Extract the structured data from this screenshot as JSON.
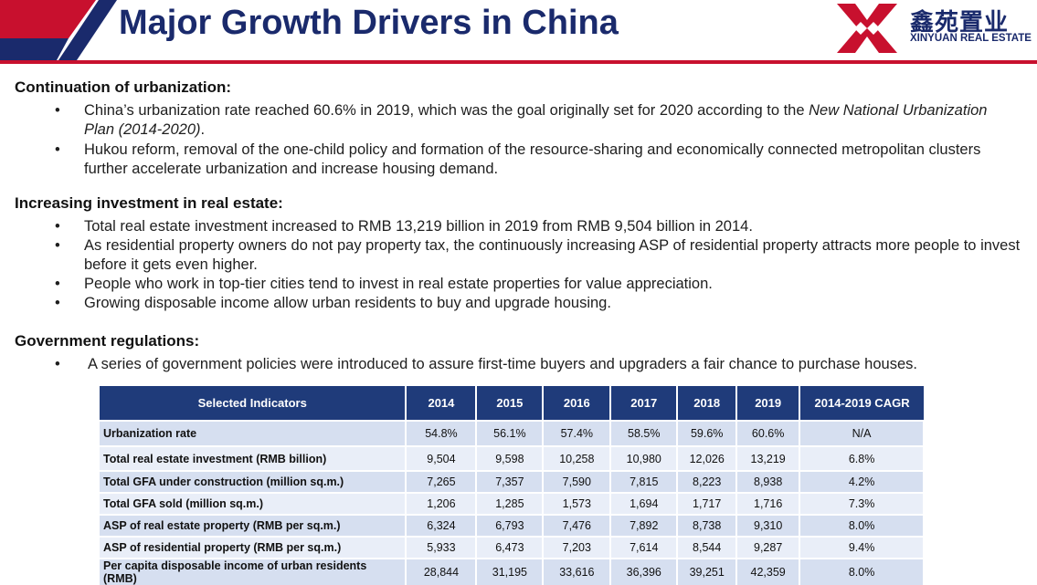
{
  "header": {
    "title": "Major Growth Drivers in China",
    "logo": {
      "chinese": "鑫苑置业",
      "english": "XINYUAN REAL ESTATE",
      "icon": "xinyuan-logo-mark"
    },
    "colors": {
      "navy": "#1a2a6c",
      "red": "#c8102e",
      "table_header": "#1f3b7a"
    }
  },
  "sections": [
    {
      "heading": "Continuation of urbanization:",
      "bullets": [
        {
          "text": "China’s urbanization rate reached 60.6% in 2019, which was the goal originally set for 2020 according to the ",
          "italic": "New National Urbanization Plan (2014-2020)",
          "tail": "."
        },
        {
          "text": "Hukou reform, removal of the one-child policy and formation of the resource-sharing and economically connected metropolitan clusters further accelerate urbanization and increase housing demand."
        }
      ]
    },
    {
      "heading": "Increasing investment in real estate:",
      "bullets": [
        {
          "text": "Total real estate investment increased to RMB 13,219 billion in 2019 from RMB 9,504 billion in 2014."
        },
        {
          "text": "As residential property owners do not pay property tax, the continuously increasing ASP of residential property attracts more people to invest before it gets even higher."
        },
        {
          "text": "People who work in top-tier cities tend to invest in real estate properties for value appreciation."
        },
        {
          "text": "Growing disposable income allow urban residents to buy and upgrade housing."
        }
      ]
    },
    {
      "heading": "Government regulations:",
      "bullets": [
        {
          "text": "A series of government policies were introduced to assure first-time buyers and upgraders a fair chance to purchase houses."
        }
      ]
    }
  ],
  "bullet_symbol": "•",
  "table": {
    "headers": [
      "Selected Indicators",
      "2014",
      "2015",
      "2016",
      "2017",
      "2018",
      "2019",
      "2014-2019 CAGR"
    ],
    "rows": [
      [
        "Urbanization rate",
        "54.8%",
        "56.1%",
        "57.4%",
        "58.5%",
        "59.6%",
        "60.6%",
        "N/A"
      ],
      [
        "Total real estate investment (RMB billion)",
        "9,504",
        "9,598",
        "10,258",
        "10,980",
        "12,026",
        "13,219",
        "6.8%"
      ],
      [
        "Total GFA under construction (million sq.m.)",
        "7,265",
        "7,357",
        "7,590",
        "7,815",
        "8,223",
        "8,938",
        "4.2%"
      ],
      [
        "Total GFA sold (million sq.m.)",
        "1,206",
        "1,285",
        "1,573",
        "1,694",
        "1,717",
        "1,716",
        "7.3%"
      ],
      [
        "ASP of real estate property (RMB per sq.m.)",
        "6,324",
        "6,793",
        "7,476",
        "7,892",
        "8,738",
        "9,310",
        "8.0%"
      ],
      [
        "ASP of residential property (RMB per sq.m.)",
        "5,933",
        "6,473",
        "7,203",
        "7,614",
        "8,544",
        "9,287",
        "9.4%"
      ],
      [
        "Per capita disposable income of urban residents (RMB)",
        "28,844",
        "31,195",
        "33,616",
        "36,396",
        "39,251",
        "42,359",
        "8.0%"
      ]
    ]
  }
}
